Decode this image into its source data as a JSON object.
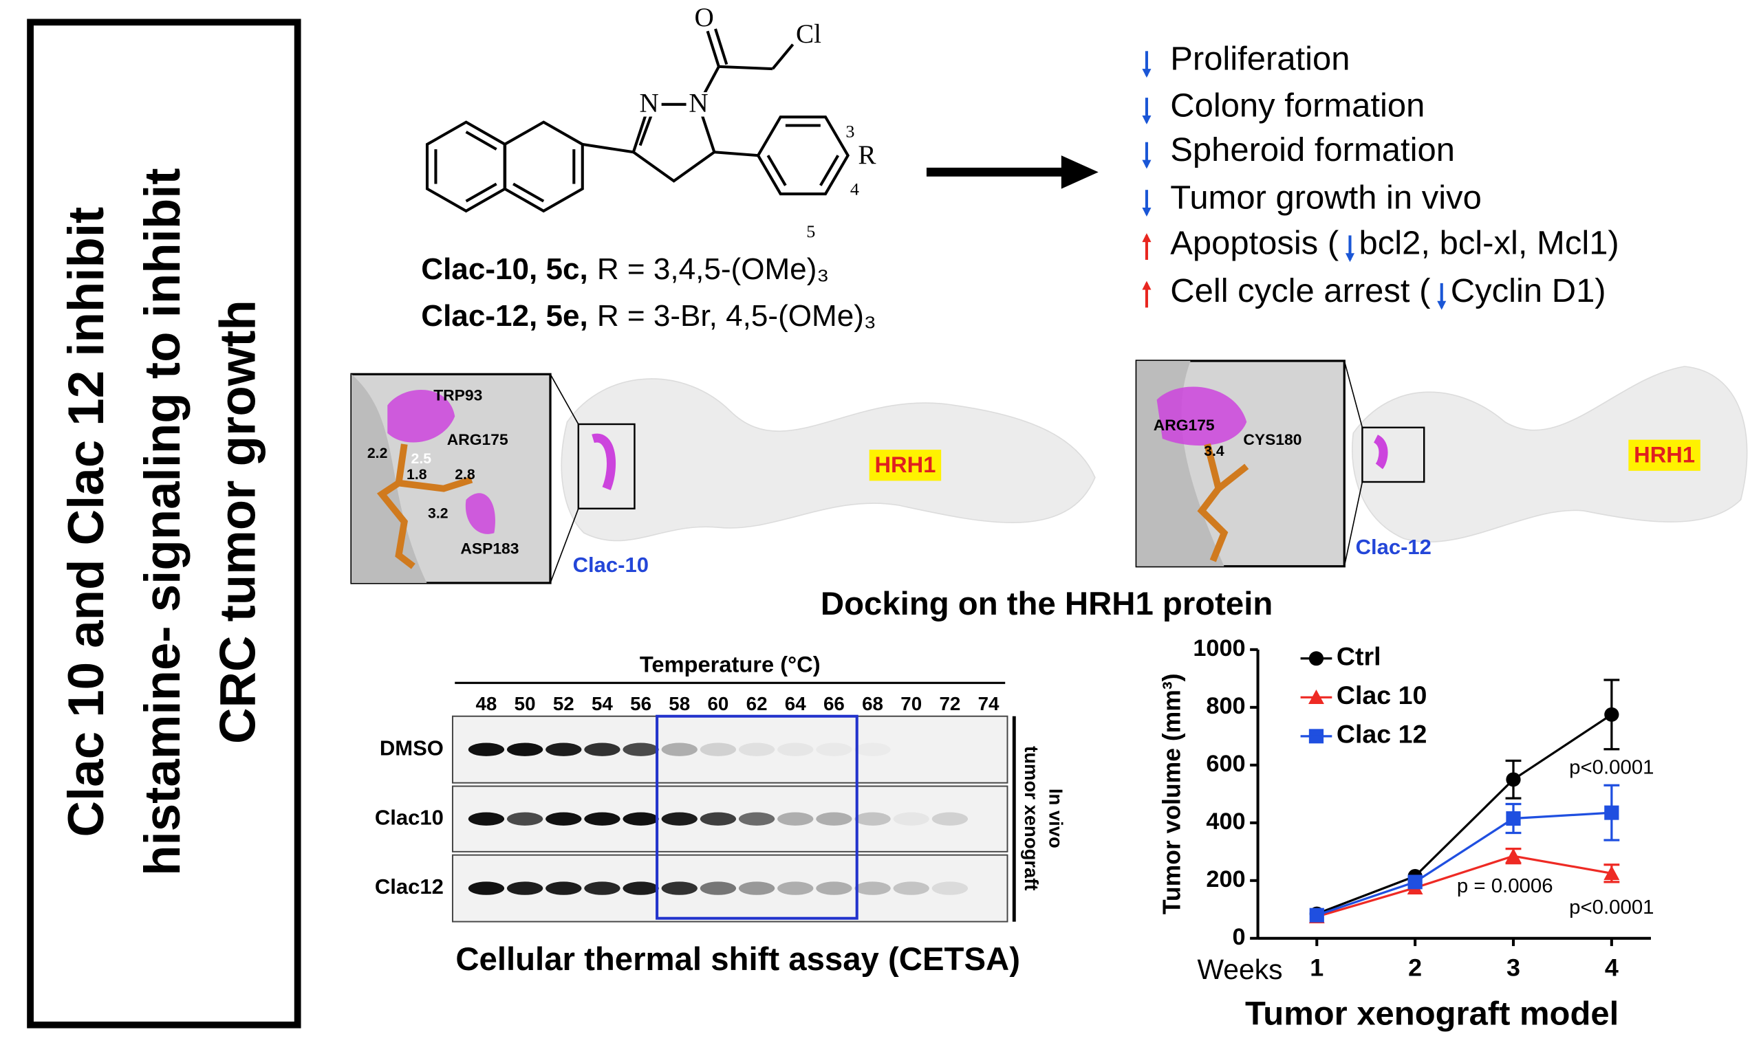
{
  "side_title": {
    "lines": [
      "Clac 10 and Clac 12 inhibit",
      "histamine- signaling to inhibit",
      "CRC tumor growth"
    ]
  },
  "structure": {
    "oxygen": "O",
    "chlorine": "Cl",
    "nitrogen_1": "N",
    "nitrogen_2": "N",
    "r_group": "R",
    "position_3": "3",
    "position_4": "4",
    "position_5": "5"
  },
  "compounds": [
    {
      "name": "Clac-10, 5c,",
      "formula": "R = 3,4,5-(OMe)₃"
    },
    {
      "name": "Clac-12, 5e,",
      "formula": "R = 3-Br, 4,5-(OMe)₃"
    }
  ],
  "effects": [
    {
      "direction": "down",
      "text": "Proliferation"
    },
    {
      "direction": "down",
      "text": "Colony formation"
    },
    {
      "direction": "down",
      "text": "Spheroid formation"
    },
    {
      "direction": "down",
      "text": "Tumor growth in vivo"
    },
    {
      "direction": "up",
      "text": "Apoptosis (",
      "inner_direction": "down",
      "inner_text": "bcl2, bcl-xl, Mcl1)"
    },
    {
      "direction": "up",
      "text": "Cell cycle arrest (",
      "inner_direction": "down",
      "inner_text": "Cyclin D1)"
    }
  ],
  "docking": {
    "caption": "Docking on the HRH1 protein",
    "panels": [
      {
        "ligand": "Clac-10",
        "protein": "HRH1",
        "residues": [
          "TRP93",
          "ARG175",
          "ASP183"
        ],
        "distances": [
          "2.2",
          "2.5",
          "1.8",
          "2.8",
          "3.2"
        ]
      },
      {
        "ligand": "Clac-12",
        "protein": "HRH1",
        "residues": [
          "ARG175",
          "CYS180"
        ],
        "distances": [
          "3.4"
        ]
      }
    ]
  },
  "cetsa": {
    "header": "Temperature (°C)",
    "temperatures": [
      "48",
      "50",
      "52",
      "54",
      "56",
      "58",
      "60",
      "62",
      "64",
      "66",
      "68",
      "70",
      "72",
      "74"
    ],
    "rows": [
      "DMSO",
      "Clac10",
      "Clac12"
    ],
    "side_label": [
      "In vivo",
      "tumor xenograft"
    ],
    "caption": "Cellular thermal shift assay (CETSA)"
  },
  "chart_data": {
    "type": "line",
    "title": "Tumor xenograft model",
    "xlabel": "Weeks",
    "ylabel": "Tumor volume (mm³)",
    "x": [
      1,
      2,
      3,
      4
    ],
    "xlim": [
      0.4,
      4.4
    ],
    "xticks": [
      1,
      2,
      3,
      4
    ],
    "ylim": [
      0,
      1000
    ],
    "yticks": [
      0,
      200,
      400,
      600,
      800,
      1000
    ],
    "series": [
      {
        "name": "Ctrl",
        "color": "#000000",
        "marker": "circle",
        "values": [
          85,
          215,
          550,
          775
        ],
        "errors": [
          null,
          null,
          65,
          120
        ]
      },
      {
        "name": "Clac 10",
        "color": "#ee2a24",
        "marker": "triangle",
        "values": [
          75,
          175,
          285,
          225
        ],
        "errors": [
          null,
          null,
          25,
          30
        ]
      },
      {
        "name": "Clac 12",
        "color": "#1f4fe0",
        "marker": "square",
        "values": [
          80,
          195,
          415,
          435
        ],
        "errors": [
          null,
          null,
          50,
          95
        ]
      }
    ],
    "annotations": [
      "p<0.0001",
      "p = 0.0006",
      "p<0.0001"
    ]
  }
}
